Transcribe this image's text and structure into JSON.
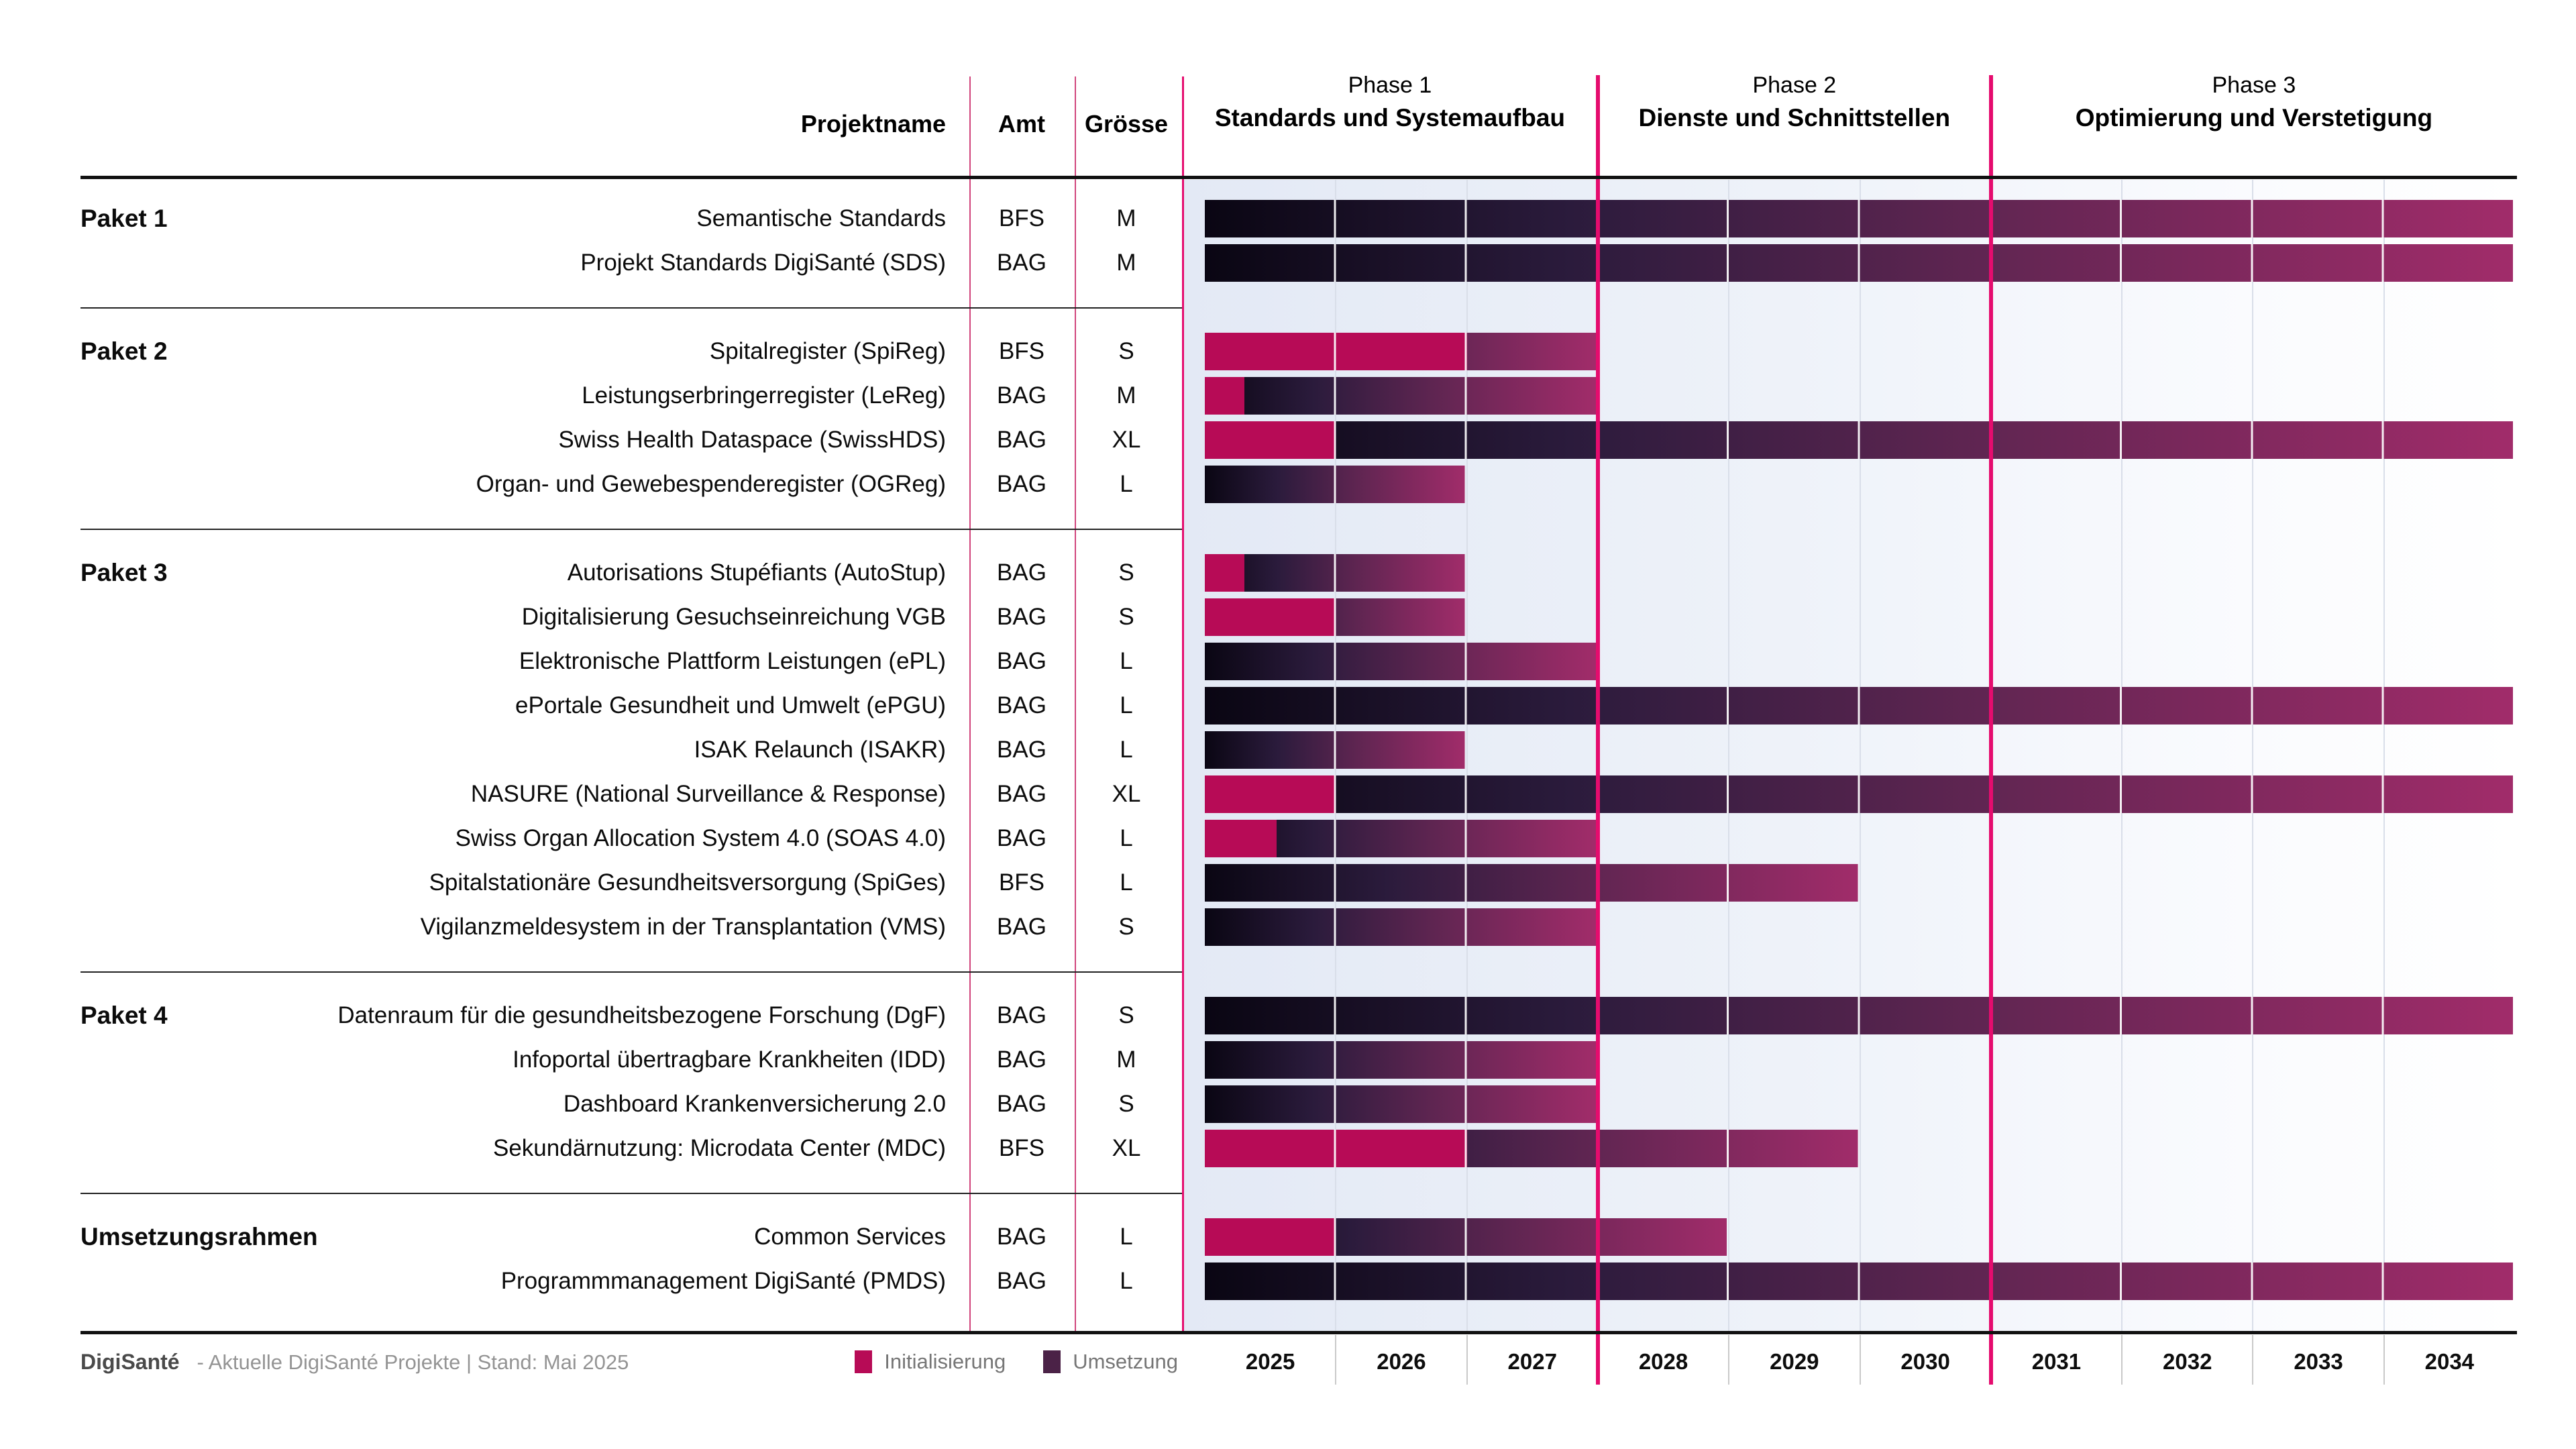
{
  "header": {
    "col_projektname": "Projektname",
    "col_amt": "Amt",
    "col_groesse": "Grösse",
    "phases": [
      {
        "label": "Phase 1",
        "subtitle": "Standards und Systemaufbau",
        "start": 2025,
        "end": 2028
      },
      {
        "label": "Phase 2",
        "subtitle": "Dienste und Schnittstellen",
        "start": 2028,
        "end": 2031
      },
      {
        "label": "Phase 3",
        "subtitle": "Optimierung und Verstetigung",
        "start": 2031,
        "end": 2035
      }
    ]
  },
  "legend": [
    {
      "label": "Initialisierung",
      "color": "#b70b56"
    },
    {
      "label": "Umsetzung",
      "color": "#4b2247"
    }
  ],
  "footer": {
    "brand": "DigiSanté",
    "note": "- Aktuelle DigiSanté Projekte | Stand: Mai 2025"
  },
  "colors": {
    "init": "#b70b56",
    "umsetzung_gradient_start": "#0a0613",
    "umsetzung_gradient_end": "#a12c6a",
    "phase_line": "#e50c6e",
    "column_separator": "#d0447c",
    "chart_background_left": "#e3e9f5"
  },
  "chart_data": {
    "type": "gantt",
    "title": "",
    "time_range": [
      2025,
      2035
    ],
    "years": [
      "2025",
      "2026",
      "2027",
      "2028",
      "2029",
      "2030",
      "2031",
      "2032",
      "2033",
      "2034"
    ],
    "legend_position": "bottom",
    "grid": true,
    "series_semantics": {
      "init_years": "duration in years of pink Initialisierung segment starting 2025",
      "total_years": "total bar duration in years starting 2025; Umsetzung gradient fills from init end to total end"
    },
    "groups": [
      {
        "name": "Paket 1",
        "projects": [
          {
            "name": "Semantische Standards",
            "amt": "BFS",
            "size": "M",
            "init_years": 0,
            "total_years": 10
          },
          {
            "name": "Projekt Standards DigiSanté (SDS)",
            "amt": "BAG",
            "size": "M",
            "init_years": 0,
            "total_years": 10
          }
        ]
      },
      {
        "name": "Paket 2",
        "projects": [
          {
            "name": "Spitalregister (SpiReg)",
            "amt": "BFS",
            "size": "S",
            "init_years": 2,
            "total_years": 3
          },
          {
            "name": "Leistungserbringerregister (LeReg)",
            "amt": "BAG",
            "size": "M",
            "init_years": 0.3,
            "total_years": 3
          },
          {
            "name": "Swiss Health Dataspace (SwissHDS)",
            "amt": "BAG",
            "size": "XL",
            "init_years": 1,
            "total_years": 10
          },
          {
            "name": "Organ- und Gewebespenderegister (OGReg)",
            "amt": "BAG",
            "size": "L",
            "init_years": 0,
            "total_years": 2
          }
        ]
      },
      {
        "name": "Paket 3",
        "projects": [
          {
            "name": "Autorisations Stupéfiants (AutoStup)",
            "amt": "BAG",
            "size": "S",
            "init_years": 0.3,
            "total_years": 2
          },
          {
            "name": "Digitalisierung Gesuchseinreichung VGB",
            "amt": "BAG",
            "size": "S",
            "init_years": 1,
            "total_years": 2
          },
          {
            "name": "Elektronische Plattform Leistungen (ePL)",
            "amt": "BAG",
            "size": "L",
            "init_years": 0,
            "total_years": 3
          },
          {
            "name": "ePortale Gesundheit und Umwelt (ePGU)",
            "amt": "BAG",
            "size": "L",
            "init_years": 0,
            "total_years": 10
          },
          {
            "name": "ISAK Relaunch (ISAKR)",
            "amt": "BAG",
            "size": "L",
            "init_years": 0,
            "total_years": 2
          },
          {
            "name": "NASURE (National Surveillance & Response)",
            "amt": "BAG",
            "size": "XL",
            "init_years": 1,
            "total_years": 10
          },
          {
            "name": "Swiss Organ Allocation System 4.0 (SOAS 4.0)",
            "amt": "BAG",
            "size": "L",
            "init_years": 0.55,
            "total_years": 3
          },
          {
            "name": "Spitalstationäre Gesundheitsversorgung (SpiGes)",
            "amt": "BFS",
            "size": "L",
            "init_years": 0,
            "total_years": 5
          },
          {
            "name": "Vigilanzmeldesystem in der Transplantation (VMS)",
            "amt": "BAG",
            "size": "S",
            "init_years": 0,
            "total_years": 3
          }
        ]
      },
      {
        "name": "Paket 4",
        "projects": [
          {
            "name": "Datenraum für die gesundheitsbezogene Forschung (DgF)",
            "amt": "BAG",
            "size": "S",
            "init_years": 0,
            "total_years": 10
          },
          {
            "name": "Infoportal übertragbare Krankheiten (IDD)",
            "amt": "BAG",
            "size": "M",
            "init_years": 0,
            "total_years": 3
          },
          {
            "name": "Dashboard Krankenversicherung 2.0",
            "amt": "BAG",
            "size": "S",
            "init_years": 0,
            "total_years": 3
          },
          {
            "name": "Sekundärnutzung: Microdata Center (MDC)",
            "amt": "BFS",
            "size": "XL",
            "init_years": 2,
            "total_years": 5
          }
        ]
      },
      {
        "name": "Umsetzungsrahmen",
        "projects": [
          {
            "name": "Common Services",
            "amt": "BAG",
            "size": "L",
            "init_years": 1,
            "total_years": 4
          },
          {
            "name": "Programmmanagement DigiSanté (PMDS)",
            "amt": "BAG",
            "size": "L",
            "init_years": 0,
            "total_years": 10
          }
        ]
      }
    ]
  }
}
